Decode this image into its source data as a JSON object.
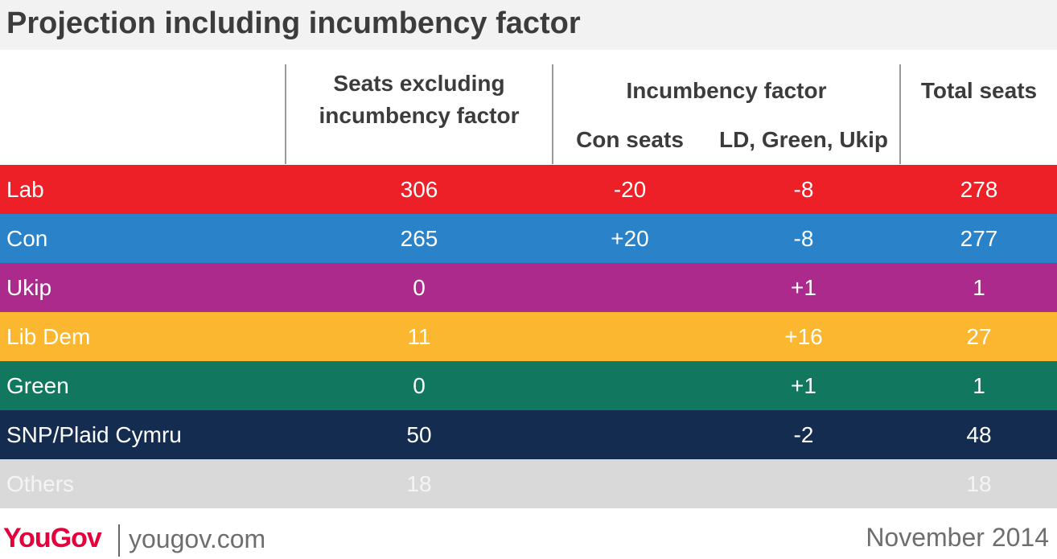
{
  "title": "Projection including incumbency factor",
  "headers": {
    "seats_excl": [
      "Seats excluding",
      "incumbency factor"
    ],
    "incumbency": "Incumbency factor",
    "con_seats": "Con seats",
    "ld_green_ukip": "LD, Green, Ukip",
    "total": "Total seats"
  },
  "chart_data": {
    "type": "table",
    "columns": [
      "Seats excluding incumbency factor",
      "Incumbency factor: Con seats",
      "Incumbency factor: LD, Green, Ukip",
      "Total seats"
    ],
    "rows": [
      {
        "party": "Lab",
        "color": "#ee2027",
        "text_color": "#ffffff",
        "seats_excl": "306",
        "con_seats": "-20",
        "ld_green_ukip": "-8",
        "total": "278"
      },
      {
        "party": "Con",
        "color": "#2a82c8",
        "text_color": "#ffffff",
        "seats_excl": "265",
        "con_seats": "+20",
        "ld_green_ukip": "-8",
        "total": "277"
      },
      {
        "party": "Ukip",
        "color": "#ac2a8c",
        "text_color": "#ffffff",
        "seats_excl": "0",
        "con_seats": "",
        "ld_green_ukip": "+1",
        "total": "1"
      },
      {
        "party": "Lib Dem",
        "color": "#fbb730",
        "text_color": "#ffffff",
        "seats_excl": "11",
        "con_seats": "",
        "ld_green_ukip": "+16",
        "total": "27"
      },
      {
        "party": "Green",
        "color": "#12775f",
        "text_color": "#ffffff",
        "seats_excl": "0",
        "con_seats": "",
        "ld_green_ukip": "+1",
        "total": "1"
      },
      {
        "party": "SNP/Plaid Cymru",
        "color": "#142c50",
        "text_color": "#ffffff",
        "seats_excl": "50",
        "con_seats": "",
        "ld_green_ukip": "-2",
        "total": "48"
      },
      {
        "party": "Others",
        "color": "#d9d9d9",
        "text_color": "#f4f4f4",
        "seats_excl": "18",
        "con_seats": "",
        "ld_green_ukip": "",
        "total": "18"
      }
    ]
  },
  "footer": {
    "logo": "YouGov",
    "site": "yougov.com",
    "date": "November 2014"
  }
}
